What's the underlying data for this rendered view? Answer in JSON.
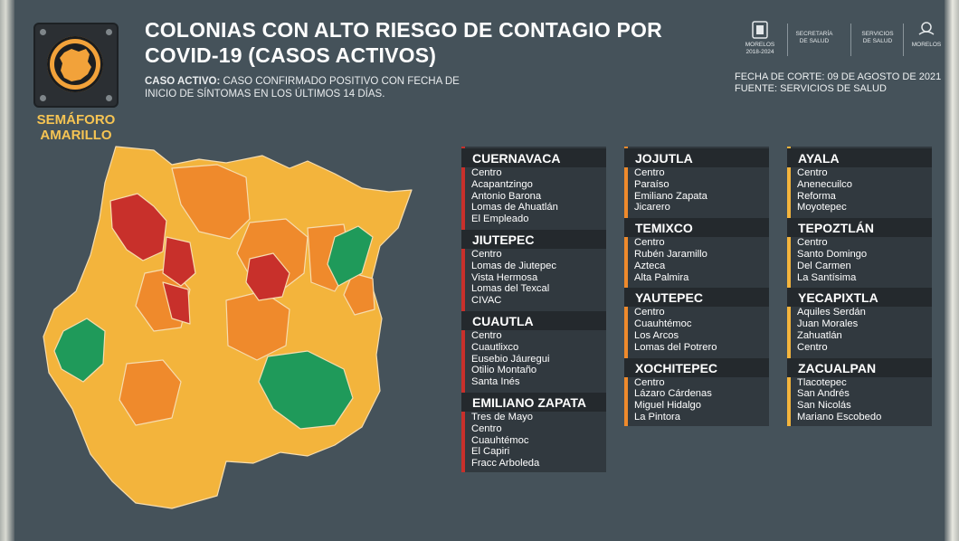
{
  "semaforo": {
    "label_line1": "SEMÁFORO",
    "label_line2": "AMARILLO",
    "color": "#f2a23a"
  },
  "title": {
    "line1": "COLONIAS CON ALTO RIESGO DE CONTAGIO POR",
    "line2": "COVID-19 (CASOS ACTIVOS)"
  },
  "definition": {
    "term": "CASO ACTIVO:",
    "text1": " CASO CONFIRMADO POSITIVO CON FECHA DE",
    "text2": "INICIO DE SÍNTOMAS EN LOS ÚLTIMOS 14 DÍAS."
  },
  "logos": {
    "morelos": "MORELOS",
    "morelos_sub": "2018-2024",
    "secretaria_l1": "SECRETARÍA",
    "secretaria_l2": "DE SALUD",
    "servicios_l1": "SERVICIOS",
    "servicios_l2": "DE SALUD",
    "anfitrion": "MORELOS"
  },
  "meta": {
    "fecha": "FECHA DE CORTE: 09 DE AGOSTO DE 2021",
    "fuente": "FUENTE: SERVICIOS DE SALUD"
  },
  "colors": {
    "red": "#c8302b",
    "orange": "#ef8a2c",
    "yellow": "#f3b43c",
    "green": "#1f9a5a"
  },
  "municipios": [
    {
      "name": "CUERNAVACA",
      "level": "red",
      "colonias": [
        "Centro",
        "Acapantzingo",
        "Antonio Barona",
        "Lomas de Ahuatlán",
        "El Empleado"
      ]
    },
    {
      "name": "JIUTEPEC",
      "level": "red",
      "colonias": [
        "Centro",
        "Lomas de Jiutepec",
        "Vista Hermosa",
        "Lomas del Texcal",
        "CIVAC"
      ]
    },
    {
      "name": "CUAUTLA",
      "level": "red",
      "colonias": [
        "Centro",
        "Cuautlixco",
        "Eusebio Jáuregui",
        "Otilio Montaño",
        "Santa Inés"
      ]
    },
    {
      "name": "EMILIANO ZAPATA",
      "level": "red",
      "colonias": [
        "Tres de Mayo",
        "Centro",
        "Cuauhtémoc",
        "El Capiri",
        "Fracc Arboleda"
      ]
    },
    {
      "name": "JOJUTLA",
      "level": "orange",
      "colonias": [
        "Centro",
        "Paraíso",
        "Emiliano Zapata",
        "Jicarero"
      ]
    },
    {
      "name": "TEMIXCO",
      "level": "orange",
      "colonias": [
        "Centro",
        "Rubén Jaramillo",
        "Azteca",
        "Alta Palmira"
      ]
    },
    {
      "name": "YAUTEPEC",
      "level": "orange",
      "colonias": [
        "Centro",
        "Cuauhtémoc",
        "Los Arcos",
        "Lomas del Potrero"
      ]
    },
    {
      "name": "XOCHITEPEC",
      "level": "orange",
      "colonias": [
        "Centro",
        "Lázaro Cárdenas",
        "Miguel Hidalgo",
        "La Pintora"
      ]
    },
    {
      "name": "AYALA",
      "level": "yellow",
      "colonias": [
        "Centro",
        "Anenecuilco",
        "Reforma",
        "Moyotepec"
      ]
    },
    {
      "name": "TEPOZTLÁN",
      "level": "yellow",
      "colonias": [
        "Centro",
        "Santo Domingo",
        "Del Carmen",
        "La Santísima"
      ]
    },
    {
      "name": "YECAPIXTLA",
      "level": "yellow",
      "colonias": [
        "Aquiles Serdán",
        "Juan Morales",
        "Zahuatlán",
        "Centro"
      ]
    },
    {
      "name": "ZACUALPAN",
      "level": "yellow",
      "colonias": [
        "Tlacotepec",
        "San Andrés",
        "San Nicolás",
        "Mariano Escobedo"
      ]
    }
  ]
}
